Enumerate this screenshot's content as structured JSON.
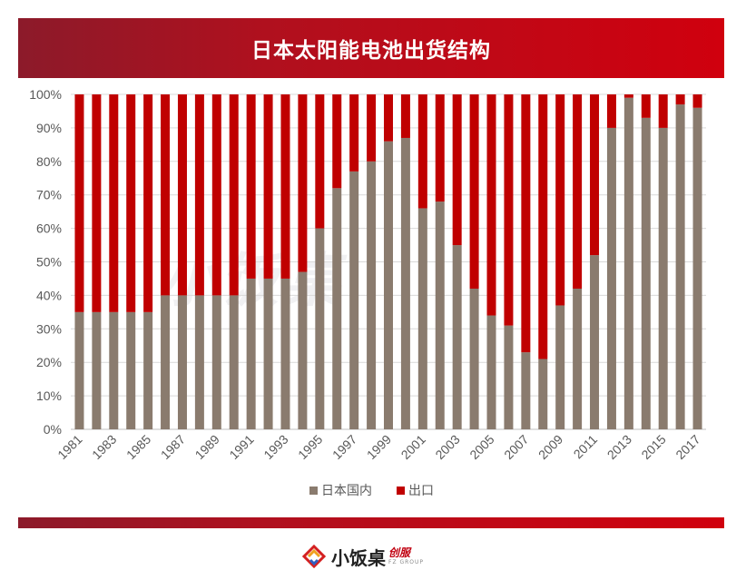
{
  "title": "日本太阳能电池出货结构",
  "logo": {
    "name": "小饭桌",
    "sub_a": "创服",
    "sub_b": "FZ GROUP"
  },
  "colors": {
    "domestic": "#8a7b6e",
    "export": "#c00000",
    "grid": "#d9d9d9",
    "axis_text": "#595959"
  },
  "chart_data": {
    "type": "bar",
    "stacked": true,
    "title": "日本太阳能电池出货结构",
    "x": [
      1981,
      1982,
      1983,
      1984,
      1985,
      1986,
      1987,
      1988,
      1989,
      1990,
      1991,
      1992,
      1993,
      1994,
      1995,
      1996,
      1997,
      1998,
      1999,
      2000,
      2001,
      2002,
      2003,
      2004,
      2005,
      2006,
      2007,
      2008,
      2009,
      2010,
      2011,
      2012,
      2013,
      2014,
      2015,
      2016,
      2017
    ],
    "x_tick_labels": [
      "1981",
      "1983",
      "1985",
      "1987",
      "1989",
      "1991",
      "1993",
      "1995",
      "1997",
      "1999",
      "2001",
      "2003",
      "2005",
      "2007",
      "2009",
      "2011",
      "2013",
      "2015",
      "2017"
    ],
    "y_tick_labels": [
      "0%",
      "10%",
      "20%",
      "30%",
      "40%",
      "50%",
      "60%",
      "70%",
      "80%",
      "90%",
      "100%"
    ],
    "ylim": [
      0,
      100
    ],
    "series": [
      {
        "name": "日本国内",
        "values": [
          35,
          35,
          35,
          35,
          35,
          40,
          40,
          40,
          40,
          40,
          45,
          45,
          45,
          47,
          60,
          72,
          77,
          80,
          86,
          87,
          66,
          68,
          55,
          42,
          34,
          31,
          23,
          21,
          37,
          42,
          52,
          90,
          99,
          93,
          90,
          97,
          96
        ]
      },
      {
        "name": "出口",
        "values": [
          65,
          65,
          65,
          65,
          65,
          60,
          60,
          60,
          60,
          60,
          55,
          55,
          55,
          53,
          40,
          28,
          23,
          20,
          14,
          13,
          34,
          32,
          45,
          58,
          66,
          69,
          77,
          79,
          63,
          58,
          48,
          10,
          1,
          7,
          10,
          3,
          4
        ]
      }
    ],
    "legend": "bottom",
    "grid": true
  }
}
